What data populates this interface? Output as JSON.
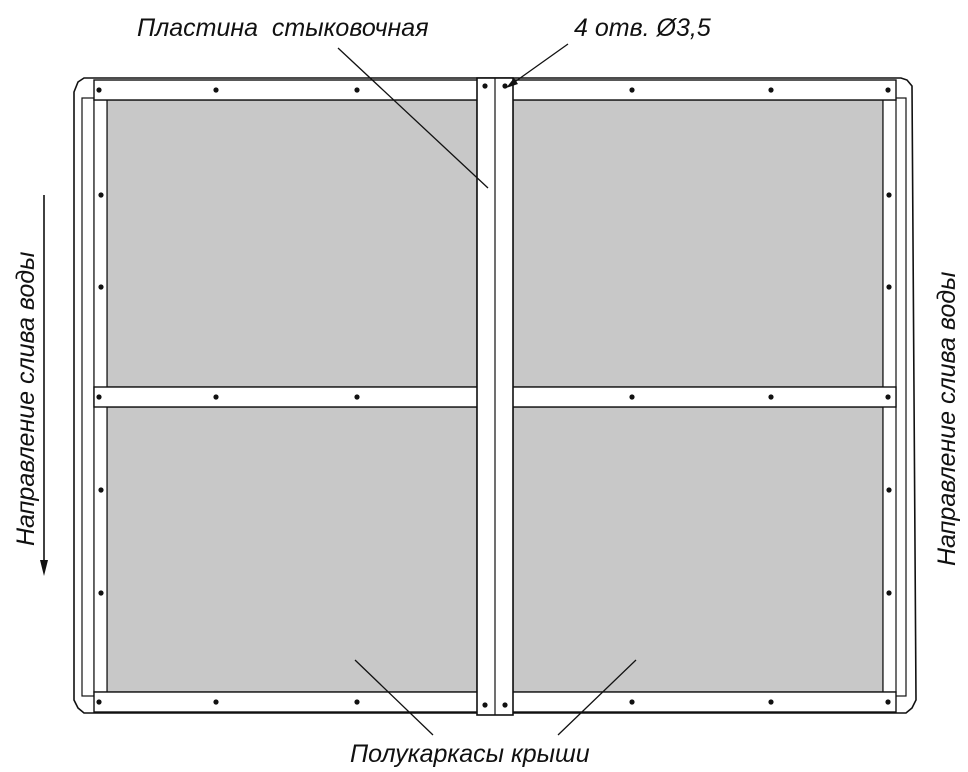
{
  "labels": {
    "docking_plate": "Пластина  стыковочная",
    "holes": "4 отв. Ø3,5",
    "half_frames": "Полукаркасы крыши",
    "drain_direction_left": "Направление слива воды",
    "drain_direction_right": "Направление слива воды"
  },
  "colors": {
    "panel_fill": "#c8c8c8",
    "line": "#111111",
    "frame_fill": "#ffffff"
  }
}
